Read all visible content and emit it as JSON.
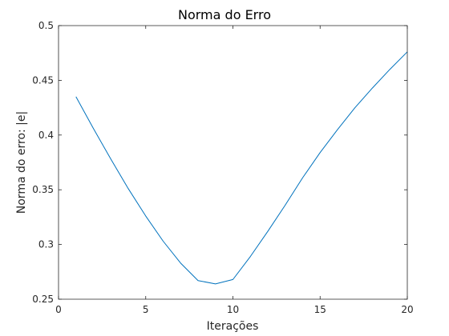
{
  "chart_data": {
    "type": "line",
    "title": "Norma do Erro",
    "xlabel": "Iterações",
    "ylabel": "Norma do erro: |e|",
    "xlim": [
      0,
      20
    ],
    "ylim": [
      0.25,
      0.5
    ],
    "xticks": [
      0,
      5,
      10,
      15,
      20
    ],
    "xtick_labels": [
      "0",
      "5",
      "10",
      "15",
      "20"
    ],
    "yticks": [
      0.25,
      0.3,
      0.35,
      0.4,
      0.45,
      0.5
    ],
    "ytick_labels": [
      "0.25",
      "0.3",
      "0.35",
      "0.4",
      "0.45",
      "0.5"
    ],
    "grid": false,
    "series": [
      {
        "color": "#0072BD",
        "x": [
          1,
          2,
          3,
          4,
          5,
          6,
          7,
          8,
          9,
          10,
          11,
          12,
          13,
          14,
          15,
          16,
          17,
          18,
          19,
          20
        ],
        "y": [
          0.435,
          0.406,
          0.378,
          0.351,
          0.326,
          0.303,
          0.283,
          0.267,
          0.264,
          0.268,
          0.289,
          0.312,
          0.336,
          0.361,
          0.384,
          0.405,
          0.425,
          0.443,
          0.46,
          0.476
        ]
      }
    ]
  }
}
